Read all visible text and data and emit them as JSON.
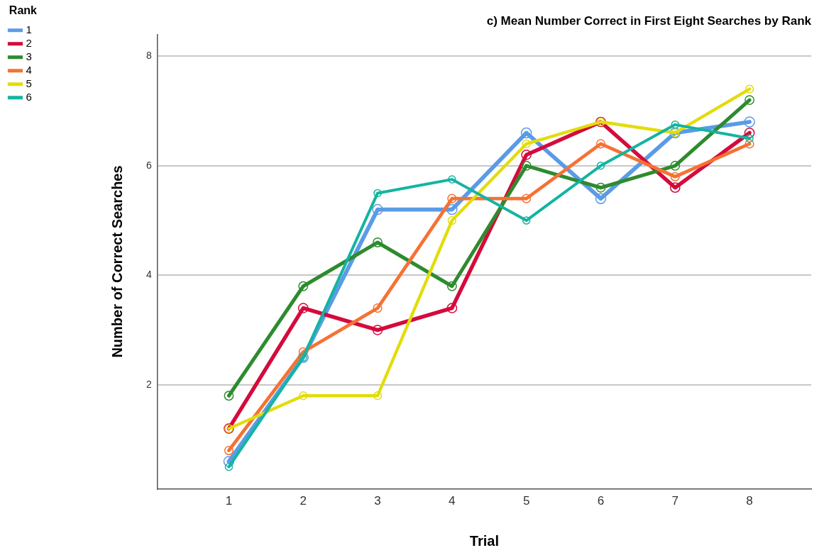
{
  "chart_data": {
    "type": "line",
    "title": "c) Mean Number Correct in First Eight Searches by Rank",
    "xlabel": "Trial",
    "ylabel": "Number of Correct Searches",
    "legend_title": "Rank",
    "x": [
      1,
      2,
      3,
      4,
      5,
      6,
      7,
      8
    ],
    "series": [
      {
        "name": "1",
        "color": "#5b9be6",
        "values": [
          0.6,
          2.5,
          5.2,
          5.2,
          6.6,
          5.4,
          6.6,
          6.8
        ]
      },
      {
        "name": "2",
        "color": "#d40b3c",
        "values": [
          1.2,
          3.4,
          3.0,
          3.4,
          6.2,
          6.8,
          5.6,
          6.6
        ]
      },
      {
        "name": "3",
        "color": "#2e8b2e",
        "values": [
          1.8,
          3.8,
          4.6,
          3.8,
          6.0,
          5.6,
          6.0,
          7.2
        ]
      },
      {
        "name": "4",
        "color": "#f57234",
        "values": [
          0.8,
          2.6,
          3.4,
          5.4,
          5.4,
          6.4,
          5.8,
          6.4
        ]
      },
      {
        "name": "5",
        "color": "#e3dc0a",
        "values": [
          1.2,
          1.8,
          1.8,
          5.0,
          6.4,
          6.8,
          6.6,
          7.4
        ]
      },
      {
        "name": "6",
        "color": "#14b4a0",
        "values": [
          0.5,
          2.5,
          5.5,
          5.75,
          5.0,
          6.0,
          6.75,
          6.5
        ]
      }
    ],
    "xlim": [
      0.04,
      8.83
    ],
    "xticks": [
      1,
      2,
      3,
      4,
      5,
      6,
      7,
      8
    ],
    "ylim": [
      0.1,
      8.4
    ],
    "yticks": [
      2,
      4,
      6,
      8
    ],
    "grid": "y",
    "legend": "top left",
    "marker": "circle",
    "line_style": "solid"
  }
}
